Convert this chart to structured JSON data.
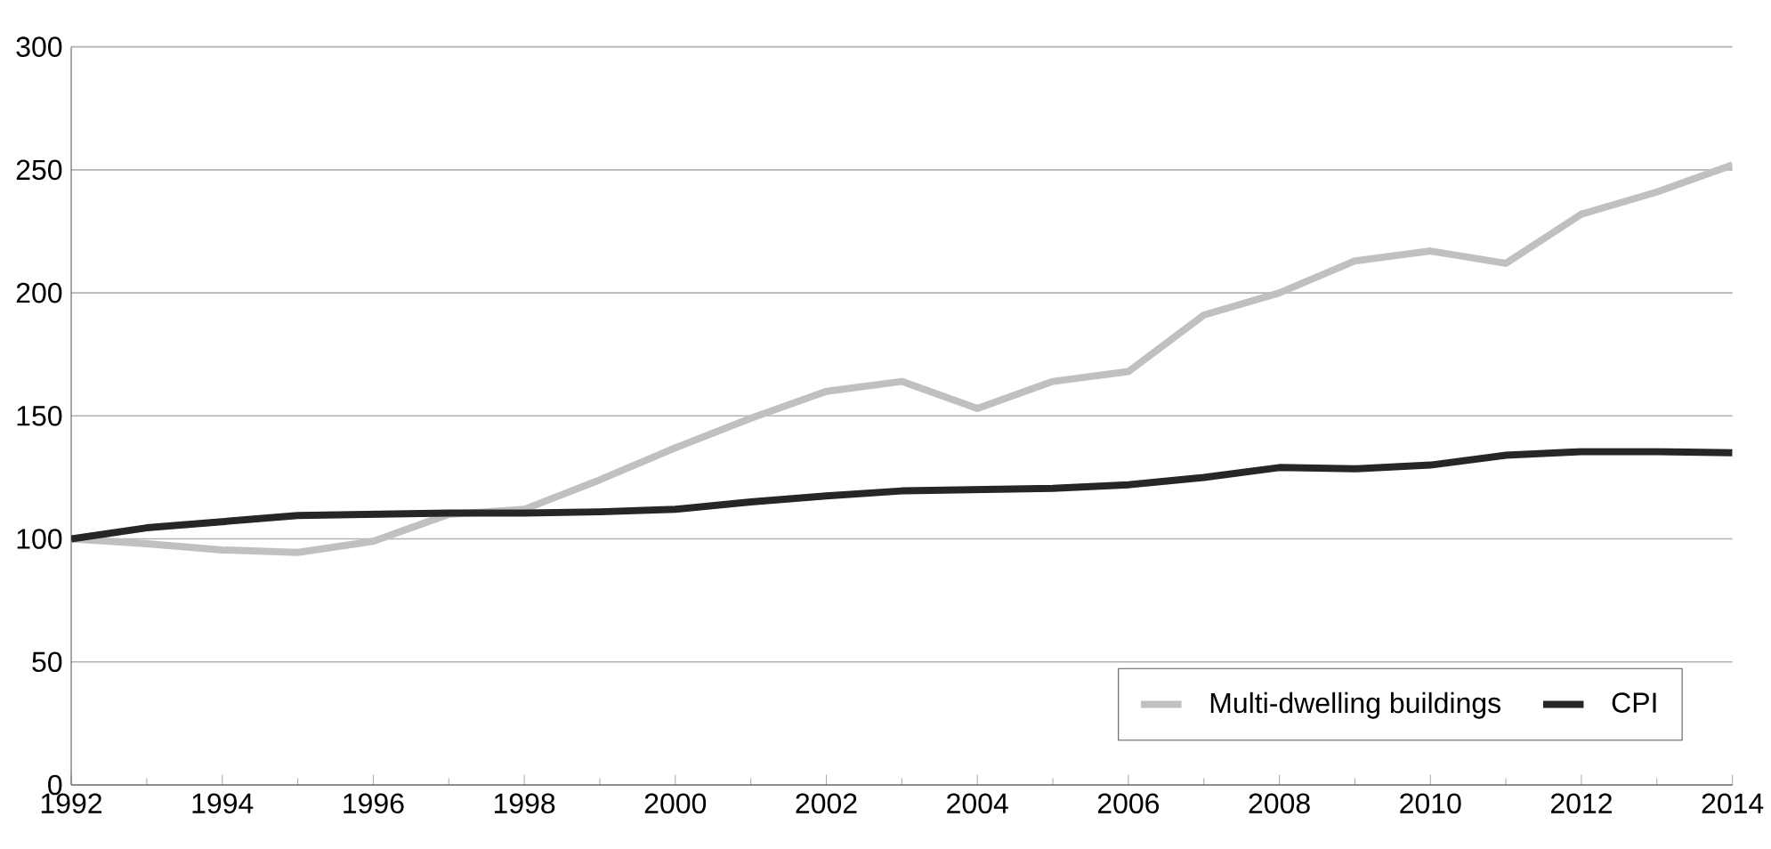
{
  "chart_data": {
    "type": "line",
    "x": [
      1992,
      1993,
      1994,
      1995,
      1996,
      1997,
      1998,
      1999,
      2000,
      2001,
      2002,
      2003,
      2004,
      2005,
      2006,
      2007,
      2008,
      2009,
      2010,
      2011,
      2012,
      2013,
      2014
    ],
    "series": [
      {
        "name": "Multi-dwelling buildings",
        "color": "#c0c0c0",
        "values": [
          100,
          98,
          95.5,
          94.5,
          99,
          110,
          112,
          124,
          137,
          149,
          160,
          164,
          153,
          164,
          168,
          191,
          200,
          213,
          217,
          212,
          232,
          241,
          252
        ]
      },
      {
        "name": "CPI",
        "color": "#262626",
        "values": [
          100,
          104.5,
          107,
          109.5,
          110,
          110.5,
          110.5,
          111,
          112,
          115,
          117.5,
          119.5,
          120,
          120.5,
          122,
          125,
          129,
          128.5,
          130,
          134,
          135.5,
          135.5,
          135
        ]
      }
    ],
    "xlim": [
      1992,
      2014
    ],
    "xticks": [
      1992,
      1994,
      1996,
      1998,
      2000,
      2002,
      2004,
      2006,
      2008,
      2010,
      2012,
      2014
    ],
    "ylim": [
      0,
      300
    ],
    "yticks": [
      0,
      50,
      100,
      150,
      200,
      250,
      300
    ],
    "grid": "y",
    "legend": "bottom right",
    "marker": "none",
    "line_style": "solid"
  }
}
